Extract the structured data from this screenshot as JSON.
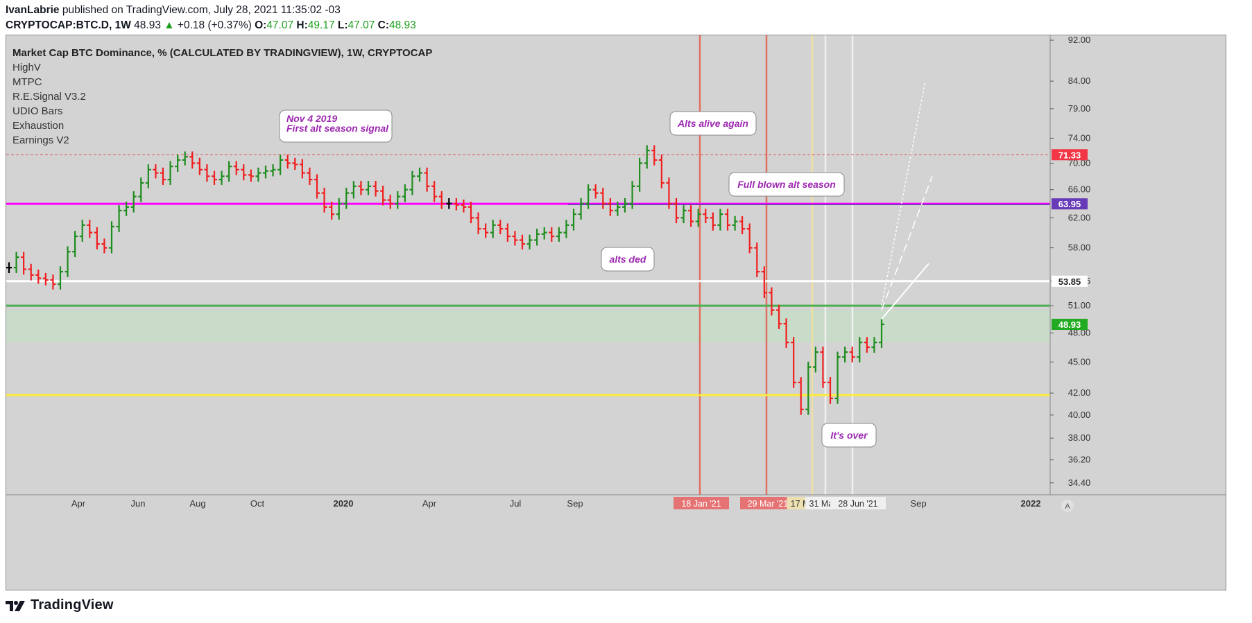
{
  "header": {
    "author": "IvanLabrie",
    "published": "published on TradingView.com, July 28, 2021 11:35:02 -03",
    "symbol": "CRYPTOCAP:BTC.D, 1W",
    "last": "48.93",
    "up_arrow": "▲",
    "change": "+0.18 (+0.37%)",
    "o_label": "O:",
    "o": "47.07",
    "h_label": "H:",
    "h": "49.17",
    "l_label": "L:",
    "l": "47.07",
    "c_label": "C:",
    "c": "48.93"
  },
  "legend": {
    "title": "Market Cap BTC Dominance, % (CALCULATED BY TRADINGVIEW), 1W, CRYPTOCAP",
    "indicators": [
      "HighV",
      "MTPC",
      "R.E.Signal V3.2",
      "UDIO Bars",
      "Exhaustion",
      "Earnings V2"
    ]
  },
  "footer": {
    "logo_icon": "tradingview-logo-icon",
    "brand": "TradingView"
  },
  "colors": {
    "background": "#d3d3d3",
    "up_bar": "#1e8c1e",
    "down_bar": "#f01e1e",
    "neutral_bar": "#000000",
    "magenta_line": "#ff00ff",
    "white_line": "#ffffff",
    "green_line": "#4caf50",
    "yellow_line": "#ffeb3b",
    "red_dashed": "#e05050",
    "price_tag_red": "#f23645",
    "price_tag_purple": "#673ab7",
    "price_tag_green": "#22ab22",
    "annotation_text": "#9c27b0"
  },
  "chart_data": {
    "type": "ohlc",
    "title": "Market Cap BTC Dominance, % (CALCULATED BY TRADINGVIEW), 1W, CRYPTOCAP",
    "y_scale": "log",
    "ylim": [
      33.5,
      93
    ],
    "y_ticks": [
      "92.00",
      "84.00",
      "79.00",
      "74.00",
      "70.00",
      "66.00",
      "62.00",
      "58.00",
      "53.85",
      "51.00",
      "48.00",
      "45.00",
      "42.00",
      "40.00",
      "38.00",
      "36.20",
      "34.40"
    ],
    "x_ticks": [
      "Apr",
      "Jun",
      "Aug",
      "Oct",
      "2020",
      "Apr",
      "Jul",
      "Sep",
      "18 Jan '21",
      "29 Mar '21",
      "17 Ma",
      "31 May",
      "28 Jun '21",
      "Sep",
      "2022"
    ],
    "price_tags": [
      {
        "label": "71.33",
        "value": 71.33,
        "color": "#f23645"
      },
      {
        "label": "63.95",
        "value": 63.95,
        "color": "#673ab7"
      },
      {
        "label": "53.85",
        "value": 53.85,
        "color": "#ffffff"
      },
      {
        "label": "48.93",
        "value": 48.93,
        "color": "#22ab22"
      }
    ],
    "horizontal_lines": [
      {
        "value": 71.33,
        "style": "dashed",
        "color": "#e05050"
      },
      {
        "value": 63.95,
        "style": "solid",
        "color": "#ff00ff"
      },
      {
        "value": 53.85,
        "style": "solid",
        "color": "#ffffff"
      },
      {
        "value": 51.0,
        "style": "solid",
        "color": "#4caf50"
      },
      {
        "value": 41.8,
        "style": "solid",
        "color": "#ffeb3b"
      }
    ],
    "annotations": [
      {
        "text": [
          "Nov 4 2019",
          "First alt season signal"
        ]
      },
      {
        "text": [
          "Alts alive again"
        ]
      },
      {
        "text": [
          "Full blown alt season"
        ]
      },
      {
        "text": [
          "alts ded"
        ]
      },
      {
        "text": [
          "It's over"
        ]
      }
    ],
    "weekly_closes": [
      55.5,
      56.8,
      55.3,
      54.6,
      54.2,
      54.0,
      53.5,
      55.0,
      57.5,
      59.5,
      61.0,
      60.0,
      58.5,
      58.0,
      60.8,
      63.0,
      63.5,
      65.0,
      67.0,
      69.0,
      68.5,
      67.5,
      69.5,
      70.5,
      71.0,
      70.0,
      69.0,
      68.0,
      67.5,
      68.0,
      69.5,
      69.0,
      68.2,
      68.0,
      68.5,
      68.8,
      69.0,
      70.5,
      70.0,
      69.8,
      68.5,
      67.5,
      65.5,
      63.5,
      62.5,
      64.0,
      65.5,
      66.5,
      66.0,
      66.5,
      65.8,
      64.5,
      64.0,
      65.0,
      66.0,
      68.0,
      68.5,
      66.5,
      65.0,
      64.0,
      64.0,
      63.8,
      63.5,
      62.0,
      60.5,
      60.0,
      61.0,
      60.5,
      59.5,
      59.0,
      58.5,
      59.0,
      59.8,
      60.0,
      59.5,
      60.0,
      61.0,
      62.5,
      64.0,
      66.0,
      65.5,
      64.0,
      63.0,
      63.5,
      64.0,
      66.5,
      70.0,
      72.0,
      70.5,
      67.0,
      64.0,
      62.0,
      63.0,
      61.5,
      62.5,
      62.0,
      61.0,
      62.5,
      61.0,
      61.5,
      60.5,
      58.0,
      55.0,
      52.5,
      50.5,
      49.0,
      47.0,
      43.0,
      40.5,
      44.5,
      46.0,
      43.0,
      41.5,
      45.5,
      46.0,
      45.5,
      47.0,
      46.5,
      47.0,
      48.93
    ]
  }
}
